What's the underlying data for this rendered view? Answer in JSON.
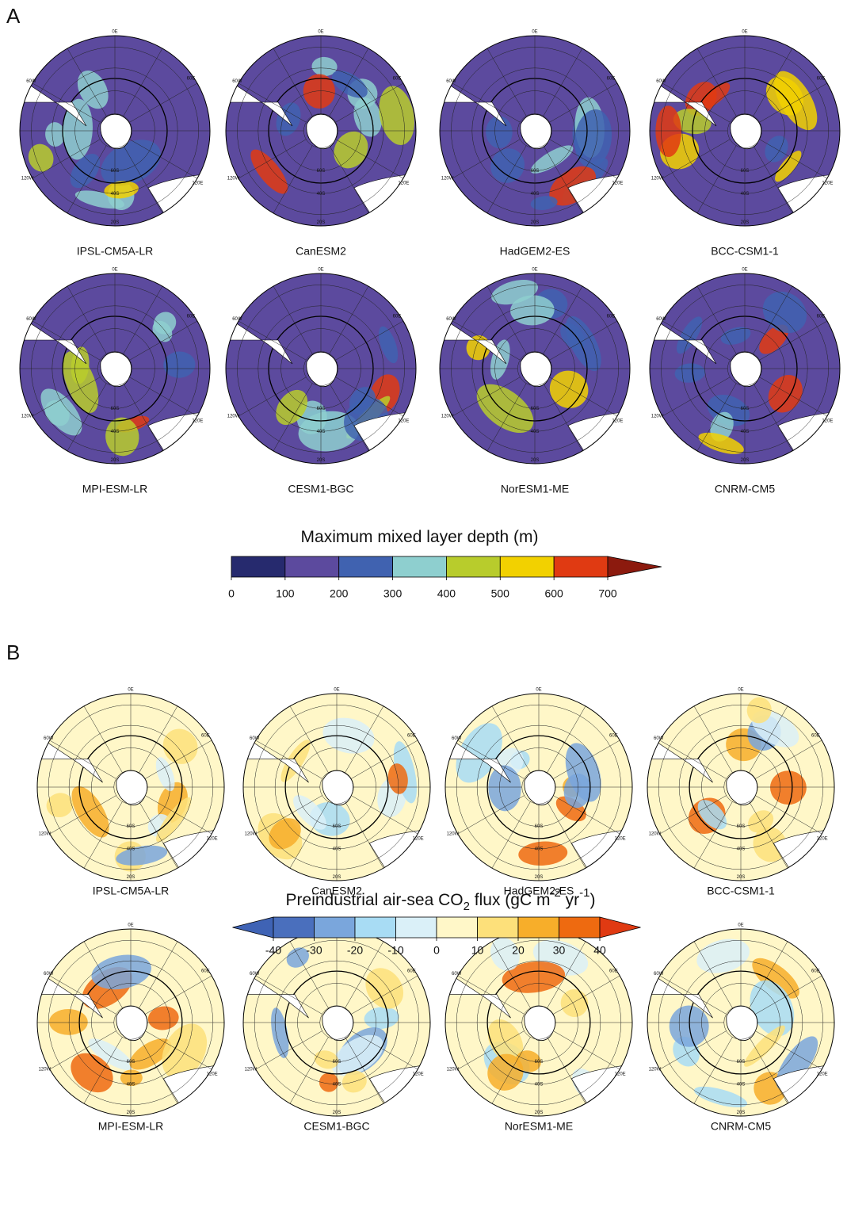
{
  "panels": [
    {
      "letter": "A",
      "maps": [
        "IPSL-CM5A-LR",
        "CanESM2",
        "HadGEM2-ES",
        "BCC-CSM1-1",
        "MPI-ESM-LR",
        "CESM1-BGC",
        "NorESM1-ME",
        "CNRM-CM5"
      ],
      "colorbar": {
        "title": [
          {
            "text": "Maximum mixed layer depth (m)",
            "style": "normal"
          }
        ],
        "xlim": [
          0,
          700
        ],
        "ticks": [
          0,
          100,
          200,
          300,
          400,
          500,
          600,
          700
        ],
        "colors": [
          "#262a6e",
          "#5c4a9e",
          "#4062b0",
          "#8ecfcf",
          "#b8cc2c",
          "#f2d100",
          "#e03a12",
          "#8c1a0e"
        ],
        "extend": "max"
      }
    },
    {
      "letter": "B",
      "maps": [
        "IPSL-CM5A-LR",
        "CanESM2",
        "HadGEM2-ES",
        "BCC-CSM1-1",
        "MPI-ESM-LR",
        "CESM1-BGC",
        "NorESM1-ME",
        "CNRM-CM5"
      ],
      "colorbar": {
        "title": [
          {
            "text": "Preindustrial air-sea CO",
            "style": "normal"
          },
          {
            "text": "2",
            "style": "sub"
          },
          {
            "text": " flux  (gC m",
            "style": "normal"
          },
          {
            "text": "-2",
            "style": "sup"
          },
          {
            "text": " yr",
            "style": "normal"
          },
          {
            "text": "-1",
            "style": "sup"
          },
          {
            "text": ")",
            "style": "normal"
          }
        ],
        "xlim": [
          -40,
          40
        ],
        "ticks": [
          -40,
          -30,
          -20,
          -10,
          0,
          10,
          20,
          30,
          40
        ],
        "colors": [
          "#3f63b5",
          "#4a6fbd",
          "#7aa6dc",
          "#a8dcf4",
          "#daf0f8",
          "#fff7c8",
          "#fde07a",
          "#f7ae2a",
          "#ee6a10",
          "#e03a12"
        ],
        "extend": "both"
      }
    }
  ],
  "map_grid_labels": {
    "top": "0E",
    "upper_right": "60E",
    "lower_right": "120E",
    "upper_left": "60W",
    "lower_left": "120W",
    "lat60": "60S",
    "lat40": "40S",
    "lat20": "20S"
  }
}
